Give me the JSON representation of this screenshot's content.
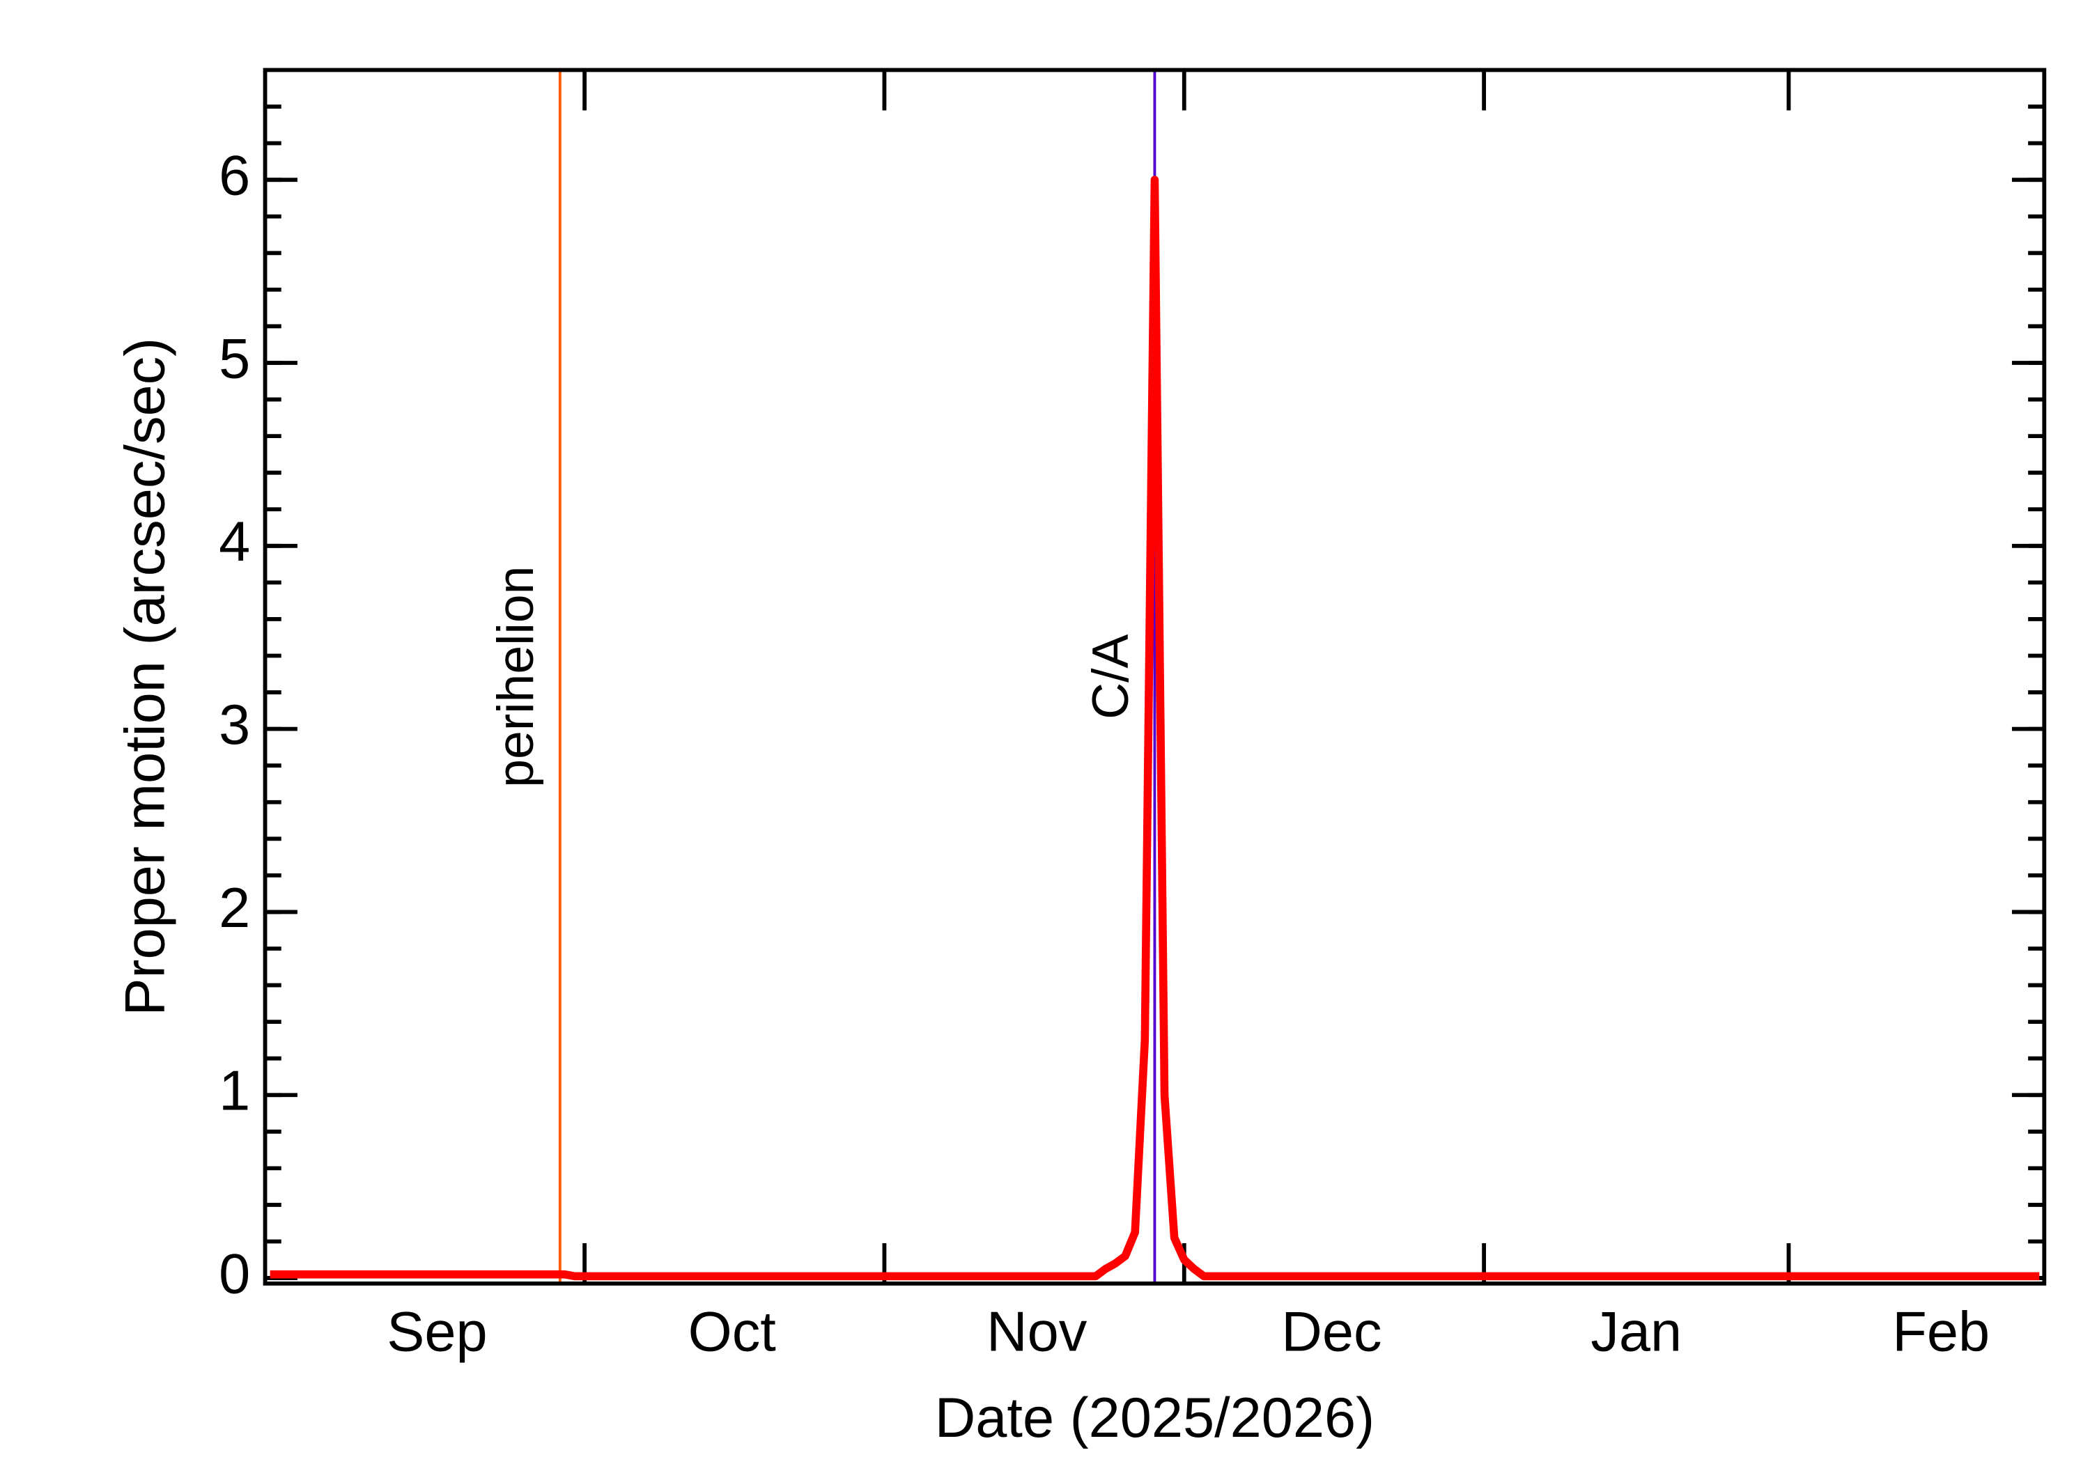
{
  "chart_data": {
    "type": "line",
    "x_label": "Date (2025/2026)",
    "y_label": "Proper motion (arcsec/sec)",
    "categories": [
      null,
      null,
      null,
      null,
      null,
      null,
      null,
      null,
      null,
      null,
      null,
      null,
      null,
      null,
      null,
      null,
      null,
      "Sep",
      null,
      null,
      null,
      null,
      null,
      null,
      null,
      null,
      null,
      null,
      null,
      null,
      null,
      null,
      null,
      null,
      null,
      null,
      null,
      null,
      null,
      null,
      null,
      null,
      null,
      null,
      null,
      null,
      null,
      "Oct",
      null,
      null,
      null,
      null,
      null,
      null,
      null,
      null,
      null,
      null,
      null,
      null,
      null,
      null,
      null,
      null,
      null,
      null,
      null,
      null,
      null,
      null,
      null,
      null,
      null,
      null,
      null,
      null,
      null,
      null,
      "Nov",
      null,
      null,
      null,
      null,
      null,
      null,
      null,
      null,
      null,
      null,
      null,
      null,
      null,
      null,
      null,
      null,
      null,
      null,
      null,
      null,
      null,
      null,
      null,
      null,
      null,
      null,
      null,
      null,
      null,
      "Dec",
      null,
      null,
      null,
      null,
      null,
      null,
      null,
      null,
      null,
      null,
      null,
      null,
      null,
      null,
      null,
      null,
      null,
      null,
      null,
      null,
      null,
      null,
      null,
      null,
      null,
      null,
      null,
      null,
      null,
      null,
      "Jan",
      null,
      null,
      null,
      null,
      null,
      null,
      null,
      null,
      null,
      null,
      null,
      null,
      null,
      null,
      null,
      null,
      null,
      null,
      null,
      null,
      null,
      null,
      null,
      null,
      null,
      null,
      null,
      null,
      null,
      null,
      "Feb",
      null,
      null,
      null,
      null,
      null,
      null,
      null,
      null,
      null,
      null
    ],
    "values": [
      0.02,
      0.02,
      0.02,
      0.02,
      0.02,
      0.02,
      0.02,
      0.02,
      0.02,
      0.02,
      0.02,
      0.02,
      0.02,
      0.02,
      0.02,
      0.02,
      0.02,
      0.02,
      0.02,
      0.02,
      0.02,
      0.02,
      0.02,
      0.02,
      0.02,
      0.02,
      0.02,
      0.02,
      0.02,
      0.02,
      0.02,
      0.01,
      0.01,
      0.01,
      0.01,
      0.01,
      0.01,
      0.01,
      0.01,
      0.01,
      0.01,
      0.01,
      0.01,
      0.01,
      0.01,
      0.01,
      0.01,
      0.01,
      0.01,
      0.01,
      0.01,
      0.01,
      0.01,
      0.01,
      0.01,
      0.01,
      0.01,
      0.01,
      0.01,
      0.01,
      0.01,
      0.01,
      0.01,
      0.01,
      0.01,
      0.01,
      0.01,
      0.01,
      0.01,
      0.01,
      0.01,
      0.01,
      0.01,
      0.01,
      0.01,
      0.01,
      0.01,
      0.01,
      0.01,
      0.01,
      0.01,
      0.01,
      0.01,
      0.01,
      0.01,
      0.05,
      0.08,
      0.12,
      0.25,
      1.3,
      6.0,
      1.0,
      0.22,
      0.1,
      0.05,
      0.01,
      0.01,
      0.01,
      0.01,
      0.01,
      0.01,
      0.01,
      0.01,
      0.01,
      0.01,
      0.01,
      0.01,
      0.01,
      0.01,
      0.01,
      0.01,
      0.01,
      0.01,
      0.01,
      0.01,
      0.01,
      0.01,
      0.01,
      0.01,
      0.01,
      0.01,
      0.01,
      0.01,
      0.01,
      0.01,
      0.01,
      0.01,
      0.01,
      0.01,
      0.01,
      0.01,
      0.01,
      0.01,
      0.01,
      0.01,
      0.01,
      0.01,
      0.01,
      0.01,
      0.01,
      0.01,
      0.01,
      0.01,
      0.01,
      0.01,
      0.01,
      0.01,
      0.01,
      0.01,
      0.01,
      0.01,
      0.01,
      0.01,
      0.01,
      0.01,
      0.01,
      0.01,
      0.01,
      0.01,
      0.01,
      0.01,
      0.01,
      0.01,
      0.01,
      0.01,
      0.01,
      0.01,
      0.01,
      0.01,
      0.01,
      0.01,
      0.01,
      0.01,
      0.01,
      0.01,
      0.01,
      0.01,
      0.01,
      0.01,
      0.01,
      0.01
    ],
    "color": "#ff0000",
    "ylim": [
      -0.03,
      6.6
    ],
    "yticks": [
      0,
      1,
      2,
      3,
      4,
      5,
      6
    ],
    "annotations": [
      {
        "label": "perihelion",
        "x": 29.5,
        "color": "#ff5a00"
      },
      {
        "label": "C/A",
        "x": 90,
        "color": "#5000d0"
      }
    ]
  }
}
